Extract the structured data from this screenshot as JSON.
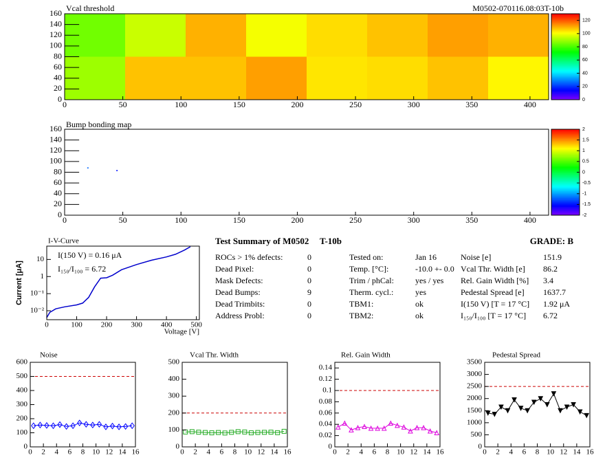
{
  "header": "M0502-070116.08:03T-10b",
  "chart_data": [
    {
      "type": "heatmap",
      "title": "Vcal threshold",
      "xlim": [
        0,
        416
      ],
      "xticks": [
        0,
        50,
        100,
        150,
        200,
        250,
        300,
        350,
        400
      ],
      "ylim": [
        0,
        160
      ],
      "yticks": [
        0,
        20,
        40,
        60,
        80,
        100,
        120,
        140,
        160
      ],
      "xbins": [
        0,
        52,
        104,
        156,
        208,
        260,
        312,
        364,
        416
      ],
      "ybins": [
        0,
        80,
        160
      ],
      "values": [
        [
          90,
          108,
          108,
          112,
          104,
          105,
          108,
          102
        ],
        [
          85,
          95,
          110,
          100,
          105,
          108,
          112,
          110
        ]
      ],
      "zlim": [
        0,
        130
      ],
      "zticks": [
        0,
        20,
        40,
        60,
        80,
        100,
        120
      ]
    },
    {
      "type": "scatter",
      "title": "Bump bonding map",
      "xlim": [
        0,
        416
      ],
      "xticks": [
        0,
        50,
        100,
        150,
        200,
        250,
        300,
        350,
        400
      ],
      "ylim": [
        0,
        160
      ],
      "yticks": [
        0,
        20,
        40,
        60,
        80,
        100,
        120,
        140,
        160
      ],
      "x": [
        20,
        45
      ],
      "y": [
        88,
        83
      ],
      "values": [
        -1.2,
        -1.5
      ],
      "zlim": [
        -2,
        2
      ],
      "zticks": [
        -2,
        -1.5,
        -1,
        -0.5,
        0,
        0.5,
        1,
        1.5,
        2
      ]
    },
    {
      "type": "line",
      "title": "I-V-Curve",
      "xlabel": "Voltage [V]",
      "ylabel": "Current [μA]",
      "color": "#0000cc",
      "log_y": true,
      "xlim": [
        0,
        510
      ],
      "xticks": [
        0,
        100,
        200,
        300,
        400,
        500
      ],
      "ylim": [
        0.003,
        60
      ],
      "yticks": [
        {
          "value": 0.01,
          "label": "10⁻²"
        },
        {
          "value": 0.1,
          "label": "10⁻¹"
        },
        1,
        10
      ],
      "x": [
        0,
        10,
        30,
        60,
        100,
        120,
        140,
        160,
        180,
        200,
        220,
        250,
        300,
        350,
        400,
        430,
        460,
        480
      ],
      "values": [
        0.004,
        0.008,
        0.013,
        0.017,
        0.022,
        0.028,
        0.06,
        0.25,
        0.8,
        0.85,
        1.2,
        2.5,
        5,
        9,
        14,
        20,
        35,
        55
      ],
      "annotations": [
        "I(150 V) = 0.16 μA",
        "I₁₅₀/I₁₀₀ = 6.72"
      ]
    },
    {
      "type": "line",
      "title": "Noise",
      "color": "#0000ff",
      "marker": "diamond",
      "reference": 500,
      "reference_color": "#cc0000",
      "xlim": [
        0,
        16
      ],
      "xticks": [
        0,
        2,
        4,
        6,
        8,
        10,
        12,
        14,
        16
      ],
      "ylim": [
        0,
        600
      ],
      "yticks": [
        0,
        100,
        200,
        300,
        400,
        500,
        600
      ],
      "x": [
        0.5,
        1.5,
        2.5,
        3.5,
        4.5,
        5.5,
        6.5,
        7.5,
        8.5,
        9.5,
        10.5,
        11.5,
        12.5,
        13.5,
        14.5,
        15.5
      ],
      "values": [
        150,
        155,
        152,
        150,
        158,
        145,
        150,
        170,
        160,
        155,
        160,
        142,
        148,
        142,
        145,
        150
      ]
    },
    {
      "type": "line",
      "title": "Vcal Thr. Width",
      "color": "#22aa22",
      "marker": "square",
      "reference": 200,
      "reference_color": "#cc0000",
      "xlim": [
        0,
        16
      ],
      "xticks": [
        0,
        2,
        4,
        6,
        8,
        10,
        12,
        14,
        16
      ],
      "ylim": [
        0,
        500
      ],
      "yticks": [
        0,
        100,
        200,
        300,
        400,
        500
      ],
      "x": [
        0.5,
        1.5,
        2.5,
        3.5,
        4.5,
        5.5,
        6.5,
        7.5,
        8.5,
        9.5,
        10.5,
        11.5,
        12.5,
        13.5,
        14.5,
        15.5
      ],
      "values": [
        88,
        90,
        87,
        85,
        83,
        85,
        82,
        86,
        90,
        88,
        83,
        85,
        86,
        87,
        84,
        92
      ]
    },
    {
      "type": "line",
      "title": "Rel. Gain Width",
      "color": "#dd00dd",
      "marker": "triangle",
      "reference": 0.1,
      "reference_color": "#cc0000",
      "xlim": [
        0,
        16
      ],
      "xticks": [
        0,
        2,
        4,
        6,
        8,
        10,
        12,
        14,
        16
      ],
      "ylim": [
        0,
        0.15
      ],
      "yticks": [
        0,
        0.02,
        0.04,
        0.06,
        0.08,
        0.1,
        0.12,
        0.14
      ],
      "x": [
        0.5,
        1.5,
        2.5,
        3.5,
        4.5,
        5.5,
        6.5,
        7.5,
        8.5,
        9.5,
        10.5,
        11.5,
        12.5,
        13.5,
        14.5,
        15.5
      ],
      "values": [
        0.035,
        0.042,
        0.03,
        0.034,
        0.036,
        0.033,
        0.033,
        0.033,
        0.042,
        0.038,
        0.035,
        0.028,
        0.034,
        0.034,
        0.028,
        0.025
      ]
    },
    {
      "type": "line",
      "title": "Pedestal Spread",
      "color": "#000000",
      "marker": "triangle-down",
      "reference": 2500,
      "reference_color": "#cc0000",
      "xlim": [
        0,
        16
      ],
      "xticks": [
        0,
        2,
        4,
        6,
        8,
        10,
        12,
        14,
        16
      ],
      "ylim": [
        0,
        3500
      ],
      "yticks": [
        0,
        500,
        1000,
        1500,
        2000,
        2500,
        3000,
        3500
      ],
      "x": [
        0.5,
        1.5,
        2.5,
        3.5,
        4.5,
        5.5,
        6.5,
        7.5,
        8.5,
        9.5,
        10.5,
        11.5,
        12.5,
        13.5,
        14.5,
        15.5
      ],
      "values": [
        1400,
        1350,
        1650,
        1500,
        1950,
        1600,
        1500,
        1850,
        2000,
        1750,
        2200,
        1500,
        1650,
        1750,
        1450,
        1300
      ]
    }
  ],
  "summary": {
    "title": "Test Summary of M0502",
    "tag": "T-10b",
    "grade": "GRADE:  B",
    "defects": [
      [
        "ROCs > 1% defects:",
        "0"
      ],
      [
        "Dead Pixel:",
        "0"
      ],
      [
        "Mask Defects:",
        "0"
      ],
      [
        "Dead Bumps:",
        "9"
      ],
      [
        "Dead Trimbits:",
        "0"
      ],
      [
        "Address Probl:",
        "0"
      ]
    ],
    "conditions": [
      [
        "Tested on:",
        "Jan 16"
      ],
      [
        "Temp. [°C]:",
        "-10.0 +- 0.0"
      ],
      [
        "Trim / phCal:",
        "yes / yes"
      ],
      [
        "Therm. cycl.:",
        "yes"
      ],
      [
        "TBM1:",
        "ok"
      ],
      [
        "TBM2:",
        "ok"
      ]
    ],
    "results": [
      [
        "Noise [e]",
        "151.9"
      ],
      [
        "Vcal Thr. Width [e]",
        "86.2"
      ],
      [
        "Rel. Gain Width [%]",
        "3.4"
      ],
      [
        "Pedestal Spread [e]",
        "1637.7"
      ],
      [
        "I(150 V) [T = 17 °C]",
        "1.92 μA"
      ],
      [
        "I₁₅₀/I₁₀₀  [T = 17 °C]",
        "6.72"
      ]
    ]
  }
}
